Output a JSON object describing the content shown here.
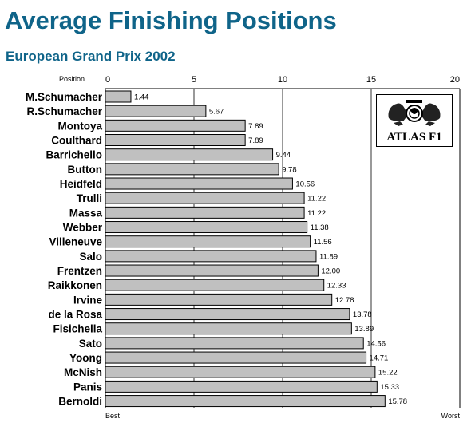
{
  "title": "Average Finishing Positions",
  "subtitle": "European Grand Prix 2002",
  "logo_text": "ATLAS F1",
  "colors": {
    "title": "#0f6489",
    "bar_fill": "#c0c0c0",
    "bar_stroke": "#000000"
  },
  "chart_data": {
    "type": "bar",
    "orientation": "horizontal",
    "categories": [
      "M.Schumacher",
      "R.Schumacher",
      "Montoya",
      "Coulthard",
      "Barrichello",
      "Button",
      "Heidfeld",
      "Trulli",
      "Massa",
      "Webber",
      "Villeneuve",
      "Salo",
      "Frentzen",
      "Raikkonen",
      "Irvine",
      "de la Rosa",
      "Fisichella",
      "Sato",
      "Yoong",
      "McNish",
      "Panis",
      "Bernoldi"
    ],
    "values": [
      1.44,
      5.67,
      7.89,
      7.89,
      9.44,
      9.78,
      10.56,
      11.22,
      11.22,
      11.38,
      11.56,
      11.89,
      12.0,
      12.33,
      12.78,
      13.78,
      13.89,
      14.56,
      14.71,
      15.22,
      15.33,
      15.78
    ],
    "value_labels": [
      "1.44",
      "5.67",
      "7.89",
      "7.89",
      "9.44",
      "9.78",
      "10.56",
      "11.22",
      "11.22",
      "11.38",
      "11.56",
      "11.89",
      "12.00",
      "12.33",
      "12.78",
      "13.78",
      "13.89",
      "14.56",
      "14.71",
      "15.22",
      "15.33",
      "15.78"
    ],
    "axis_label": "Position",
    "ticks": [
      0,
      5,
      10,
      15,
      20
    ],
    "tick_labels": [
      "0",
      "5",
      "10",
      "15",
      "20"
    ],
    "xlim": [
      0,
      20
    ],
    "min_label": "Best",
    "max_label": "Worst",
    "grid": true
  }
}
